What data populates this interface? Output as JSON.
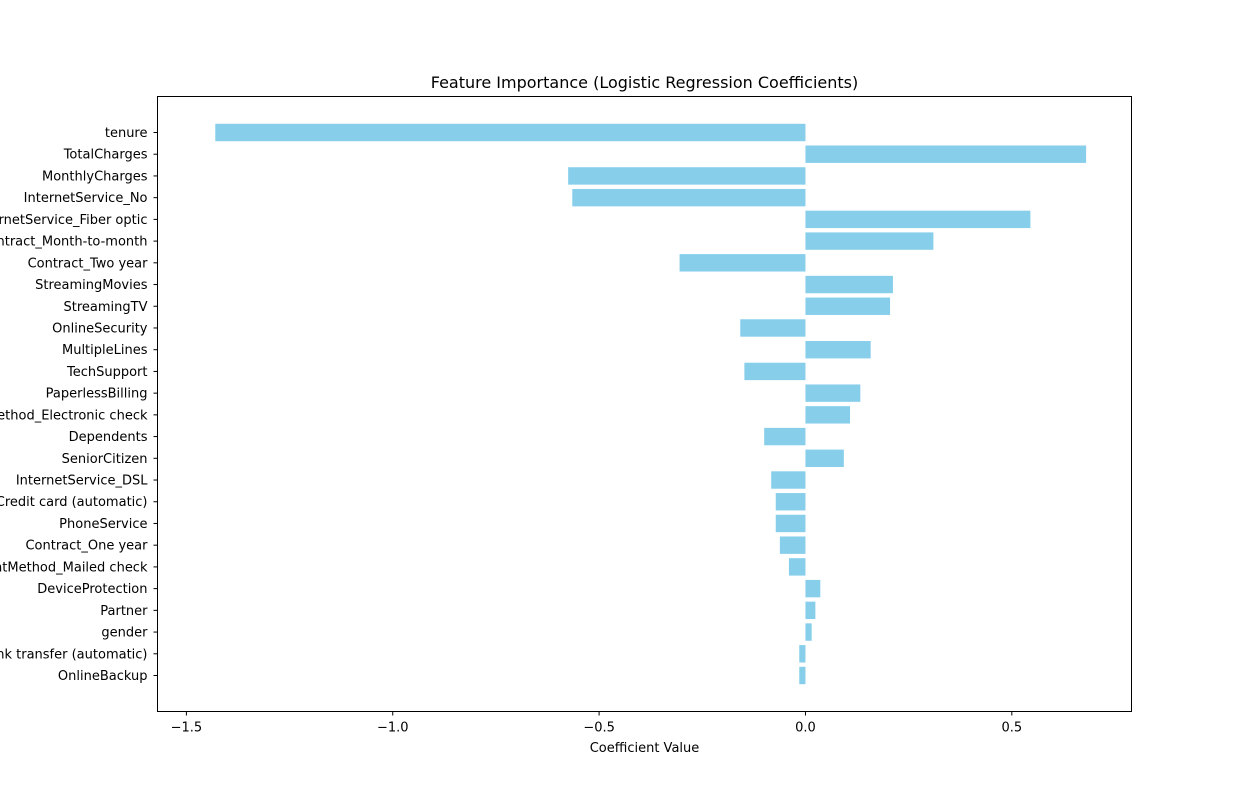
{
  "chart_data": {
    "type": "bar",
    "orientation": "horizontal",
    "title": "Feature Importance (Logistic Regression Coefficients)",
    "xlabel": "Coefficient Value",
    "ylabel": "",
    "xlim": [
      -1.57,
      0.79
    ],
    "xticks": [
      -1.5,
      -1.0,
      -0.5,
      0.0,
      0.5
    ],
    "xtick_labels": [
      "−1.5",
      "−1.0",
      "−0.5",
      "0.0",
      "0.5"
    ],
    "grid": false,
    "bar_color": "#87CEEB",
    "categories": [
      "tenure",
      "TotalCharges",
      "MonthlyCharges",
      "InternetService_No",
      "InternetService_Fiber optic",
      "Contract_Month-to-month",
      "Contract_Two year",
      "StreamingMovies",
      "StreamingTV",
      "OnlineSecurity",
      "MultipleLines",
      "TechSupport",
      "PaperlessBilling",
      "PaymentMethod_Electronic check",
      "Dependents",
      "SeniorCitizen",
      "InternetService_DSL",
      "PaymentMethod_Credit card (automatic)",
      "PhoneService",
      "Contract_One year",
      "PaymentMethod_Mailed check",
      "DeviceProtection",
      "Partner",
      "gender",
      "PaymentMethod_Bank transfer (automatic)",
      "OnlineBackup"
    ],
    "values": [
      -1.43,
      0.68,
      -0.575,
      -0.565,
      0.545,
      0.31,
      -0.305,
      0.212,
      0.205,
      -0.158,
      0.158,
      -0.148,
      0.133,
      0.108,
      -0.1,
      0.093,
      -0.083,
      -0.072,
      -0.072,
      -0.062,
      -0.04,
      0.036,
      0.024,
      0.015,
      -0.015,
      -0.015
    ]
  }
}
